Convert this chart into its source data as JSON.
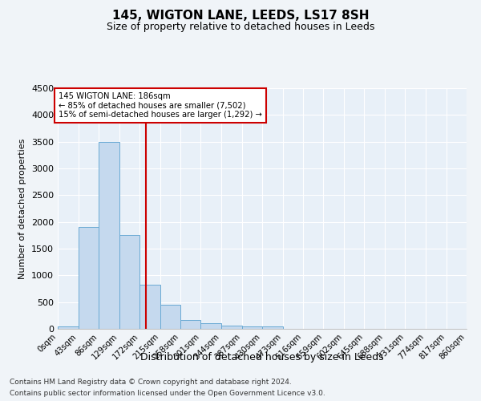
{
  "title": "145, WIGTON LANE, LEEDS, LS17 8SH",
  "subtitle": "Size of property relative to detached houses in Leeds",
  "xlabel": "Distribution of detached houses by size in Leeds",
  "ylabel": "Number of detached properties",
  "bar_color": "#c5d9ee",
  "bar_edge_color": "#6aaad4",
  "background_color": "#dce8f5",
  "plot_bg_color": "#e8f0f8",
  "grid_color": "#ffffff",
  "bin_width": 43,
  "bar_values": [
    50,
    1900,
    3500,
    1750,
    830,
    450,
    165,
    105,
    65,
    50,
    40,
    0,
    0,
    0,
    0,
    0,
    0,
    0,
    0,
    0
  ],
  "tick_labels": [
    "0sqm",
    "43sqm",
    "86sqm",
    "129sqm",
    "172sqm",
    "215sqm",
    "258sqm",
    "301sqm",
    "344sqm",
    "387sqm",
    "430sqm",
    "473sqm",
    "516sqm",
    "559sqm",
    "602sqm",
    "645sqm",
    "688sqm",
    "731sqm",
    "774sqm",
    "817sqm",
    "860sqm"
  ],
  "vline_x": 186,
  "vline_color": "#cc0000",
  "annotation_title": "145 WIGTON LANE: 186sqm",
  "annotation_line1": "← 85% of detached houses are smaller (7,502)",
  "annotation_line2": "15% of semi-detached houses are larger (1,292) →",
  "annotation_box_color": "#ffffff",
  "annotation_box_edge": "#cc0000",
  "ylim": [
    0,
    4500
  ],
  "yticks": [
    0,
    500,
    1000,
    1500,
    2000,
    2500,
    3000,
    3500,
    4000,
    4500
  ],
  "footnote1": "Contains HM Land Registry data © Crown copyright and database right 2024.",
  "footnote2": "Contains public sector information licensed under the Open Government Licence v3.0."
}
